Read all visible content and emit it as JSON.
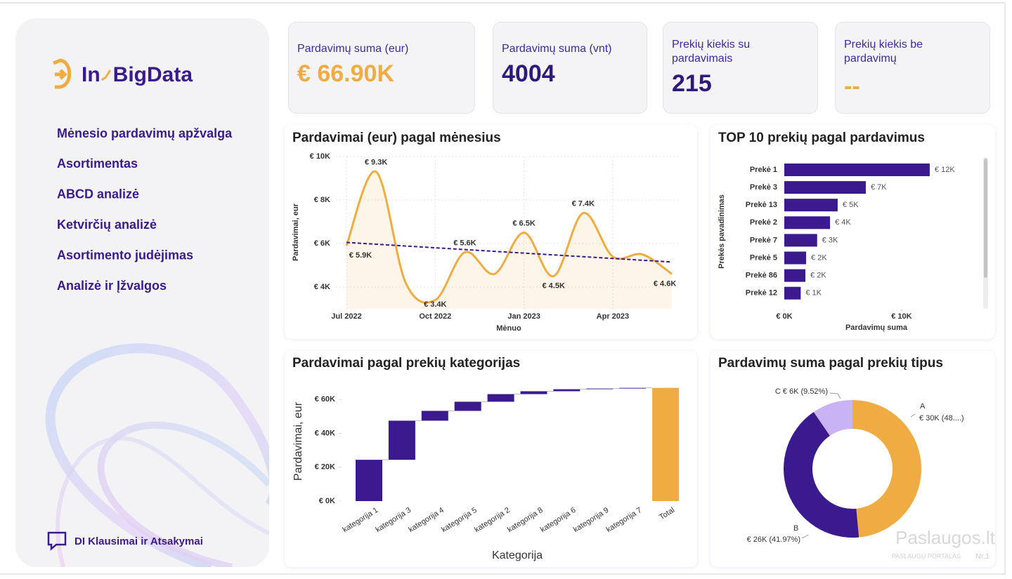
{
  "sidebar": {
    "brand": [
      "In",
      "BigData"
    ],
    "nav": [
      "Mėnesio pardavimų apžvalga",
      "Asortimentas",
      "ABCD analizė",
      "Ketvirčių analizė",
      "Asortimento judėjimas",
      "Analizė ir Įžvalgos"
    ],
    "footer": "DI Klausimai ir Atsakymai"
  },
  "kpis": [
    {
      "label": "Pardavimų suma (eur)",
      "value": "€ 66.90K"
    },
    {
      "label": "Pardavimų suma (vnt)",
      "value": "4004"
    },
    {
      "label": "Prekių kiekis su pardavimais",
      "value": "215"
    },
    {
      "label": "Prekių kiekis be pardavimų",
      "value": "--"
    }
  ],
  "chart_data": [
    {
      "type": "line",
      "title": "Pardavimai (eur) pagal mėnesius",
      "x_label": "Mėnuo",
      "y_label": "Pardavimai, eur",
      "categories": [
        "Jul 2022",
        null,
        null,
        "Oct 2022",
        null,
        null,
        "Jan 2023",
        null,
        null,
        "Apr 2023",
        null,
        null
      ],
      "values": [
        5900,
        9300,
        4200,
        3400,
        5600,
        4600,
        6500,
        4500,
        7400,
        5400,
        5500,
        4600
      ],
      "value_labels": [
        "€ 5.9K",
        "€ 9.3K",
        null,
        "€ 3.4K",
        "€ 5.6K",
        null,
        "€ 6.5K",
        "€ 4.5K",
        "€ 7.4K",
        null,
        null,
        "€ 4.6K"
      ],
      "color": "#efac42",
      "trend": {
        "values": [
          6050,
          5150
        ],
        "color": "#3a1a8c"
      },
      "ylim": [
        3000,
        10000
      ],
      "yticks": [
        {
          "value": 4000,
          "label": "€ 4K"
        },
        {
          "value": 6000,
          "label": "€ 6K"
        },
        {
          "value": 8000,
          "label": "€ 8K"
        },
        {
          "value": 10000,
          "label": "€ 10K"
        }
      ],
      "grid": true
    },
    {
      "type": "hbar",
      "title": "TOP 10 prekių pagal pardavimus",
      "x_label": "Pardavimų suma",
      "y_label": "Prekės pavadinimas",
      "categories": [
        "Prekė 1",
        "Prekė 3",
        "Prekė 13",
        "Prekė 2",
        "Prekė 7",
        "Prekė 5",
        "Prekė 86",
        "Prekė 12"
      ],
      "values": [
        12400,
        6950,
        4550,
        3900,
        2800,
        1860,
        1800,
        1400
      ],
      "value_labels": [
        "€ 12K",
        "€ 7K",
        "€ 5K",
        "€ 4K",
        "€ 3K",
        "€ 2K",
        "€ 2K",
        "€ 1K"
      ],
      "color": "#3a1a8c",
      "xlim": [
        0,
        16000
      ],
      "xticks": [
        {
          "value": 0,
          "label": "€ 0K"
        },
        {
          "value": 10000,
          "label": "€ 10K"
        }
      ]
    },
    {
      "type": "waterfall",
      "title": "Pardavimai pagal prekių kategorijas",
      "x_label": "Kategorija",
      "y_label": "Pardavimai, eur",
      "categories": [
        "kategorija 1",
        "kategorija 3",
        "kategorija 4",
        "kategorija 5",
        "kategorija 2",
        "kategorija 8",
        "kategorija 6",
        "kategorija 9",
        "kategorija 7"
      ],
      "values": [
        24400,
        23100,
        5800,
        5400,
        4500,
        1700,
        1200,
        400,
        400
      ],
      "color": "#3a1a8c",
      "total": {
        "label": "Total",
        "value": 66900,
        "color": "#efac42"
      },
      "ylim": [
        0,
        68000
      ],
      "yticks": [
        {
          "value": 0,
          "label": "€ 0K"
        },
        {
          "value": 20000,
          "label": "€ 20K"
        },
        {
          "value": 40000,
          "label": "€ 40K"
        },
        {
          "value": 60000,
          "label": "€ 60K"
        }
      ]
    },
    {
      "type": "donut",
      "title": "Pardavimų suma pagal prekių tipus",
      "categories": [
        "A",
        "B",
        "C"
      ],
      "values": [
        48.51,
        41.97,
        9.52
      ],
      "value_labels": [
        "€ 30K (48....)",
        "€ 26K (41.97%)",
        "€ 6K (9.52%)"
      ],
      "colors": [
        "#efac42",
        "#3a1a8c",
        "#c9b3f5"
      ]
    }
  ],
  "watermark": [
    "Paslaugos.lt",
    "PASLAUGŲ PORTALAS",
    "Nr.1"
  ]
}
